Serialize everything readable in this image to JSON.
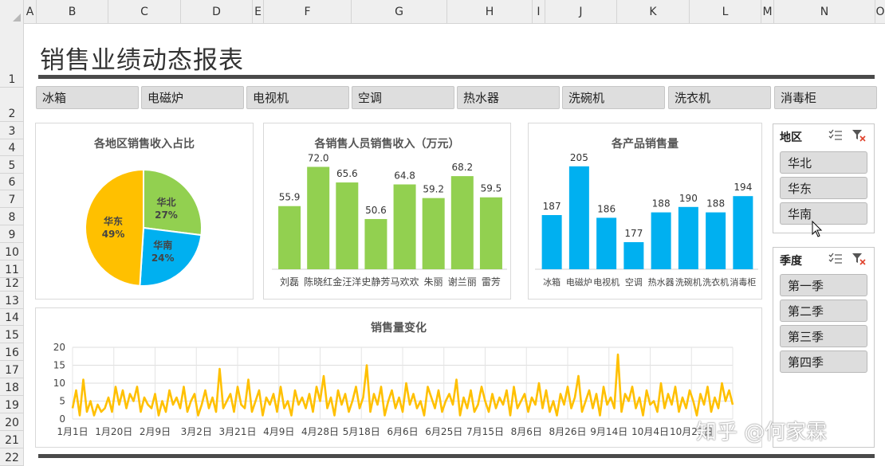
{
  "sheet": {
    "columns": [
      "A",
      "B",
      "C",
      "D",
      "E",
      "F",
      "G",
      "H",
      "I",
      "J",
      "K",
      "L",
      "M",
      "N",
      "O"
    ],
    "rows": [
      "1",
      "2",
      "3",
      "4",
      "5",
      "6",
      "7",
      "8",
      "9",
      "10",
      "11",
      "12",
      "13",
      "14",
      "15",
      "16",
      "17",
      "18",
      "19",
      "20",
      "21",
      "22"
    ]
  },
  "title": "销售业绩动态报表",
  "products": [
    "冰箱",
    "电磁炉",
    "电视机",
    "空调",
    "热水器",
    "洗碗机",
    "洗衣机",
    "消毒柜"
  ],
  "slicers": {
    "region": {
      "title": "地区",
      "items": [
        "华北",
        "华东",
        "华南"
      ]
    },
    "quarter": {
      "title": "季度",
      "items": [
        "第一季",
        "第二季",
        "第三季",
        "第四季"
      ]
    }
  },
  "icons": {
    "multi_select": "multi-select-icon",
    "clear_filter": "clear-filter-icon",
    "cursor": "mouse-cursor-icon"
  },
  "colors": {
    "green": "#92d050",
    "blue": "#00b0f0",
    "gold": "#ffc000"
  },
  "watermark": "知乎 @何家霖",
  "chart_data": [
    {
      "type": "pie",
      "title": "各地区销售收入占比",
      "categories": [
        "华北",
        "华南",
        "华东"
      ],
      "values": [
        27,
        24,
        49
      ],
      "labels": [
        "27%",
        "24%",
        "49%"
      ],
      "colors": [
        "#92d050",
        "#00b0f0",
        "#ffc000"
      ]
    },
    {
      "type": "bar",
      "title": "各销售人员销售收入（万元）",
      "categories": [
        "刘磊",
        "陈晓红",
        "金汪洋",
        "史静芳",
        "马欢欢",
        "朱丽",
        "谢兰丽",
        "雷芳"
      ],
      "values": [
        55.9,
        72.0,
        65.6,
        50.6,
        64.8,
        59.2,
        68.2,
        59.5
      ],
      "labels": [
        "55.9",
        "72.0",
        "65.6",
        "50.6",
        "64.8",
        "59.2",
        "68.2",
        "59.5"
      ],
      "color": "#92d050",
      "ylim": [
        30,
        80
      ]
    },
    {
      "type": "bar",
      "title": "各产品销售量",
      "categories": [
        "冰箱",
        "电磁炉",
        "电视机",
        "空调",
        "热水器",
        "洗碗机",
        "洗衣机",
        "消毒柜"
      ],
      "values": [
        187,
        205,
        186,
        177,
        188,
        190,
        188,
        194
      ],
      "labels": [
        "187",
        "205",
        "186",
        "177",
        "188",
        "190",
        "188",
        "194"
      ],
      "color": "#00b0f0",
      "ylim": [
        167,
        212
      ]
    },
    {
      "type": "line",
      "title": "销售量变化",
      "ylim": [
        0,
        20
      ],
      "yticks": [
        "0",
        "5",
        "10",
        "15",
        "20"
      ],
      "xticks": [
        "1月1日",
        "1月20日",
        "2月9日",
        "3月2日",
        "3月21日",
        "4月9日",
        "4月28日",
        "5月18日",
        "6月6日",
        "6月25日",
        "7月15日",
        "8月6日",
        "8月26日",
        "9月14日",
        "10月4日",
        "10月23日"
      ],
      "color": "#ffc000",
      "grid": true,
      "values": [
        3,
        8,
        1,
        11,
        2,
        5,
        1,
        4,
        2,
        3,
        6,
        2,
        9,
        4,
        8,
        3,
        7,
        5,
        9,
        2,
        6,
        4,
        3,
        7,
        1,
        5,
        2,
        8,
        4,
        6,
        3,
        9,
        2,
        5,
        7,
        1,
        4,
        8,
        3,
        6,
        2,
        14,
        3,
        5,
        7,
        2,
        9,
        4,
        3,
        11,
        2,
        5,
        8,
        1,
        6,
        4,
        7,
        2,
        9,
        3,
        5,
        1,
        8,
        4,
        6,
        3,
        7,
        2,
        9,
        5,
        12,
        3,
        6,
        1,
        8,
        4,
        7,
        2,
        5,
        9,
        3,
        6,
        15,
        2,
        7,
        4,
        9,
        1,
        5,
        8,
        3,
        6,
        2,
        10,
        4,
        7,
        3,
        5,
        1,
        9,
        6,
        3,
        8,
        2,
        5,
        7,
        4,
        11,
        1,
        6,
        3,
        8,
        2,
        4,
        9,
        5,
        2,
        7,
        3,
        6,
        4,
        8,
        1,
        9,
        3,
        5,
        7,
        2,
        6,
        4,
        10,
        3,
        8,
        2,
        5,
        1,
        7,
        4,
        9,
        3,
        6,
        12,
        2,
        5,
        8,
        3,
        7,
        1,
        9,
        4,
        6,
        3,
        18,
        2,
        7,
        5,
        9,
        3,
        6,
        1,
        8,
        4,
        5,
        2,
        10,
        3,
        7,
        4,
        9,
        2,
        6,
        3,
        8,
        5,
        1,
        7,
        4,
        9,
        2,
        6,
        3,
        10,
        5,
        8,
        4
      ]
    }
  ]
}
